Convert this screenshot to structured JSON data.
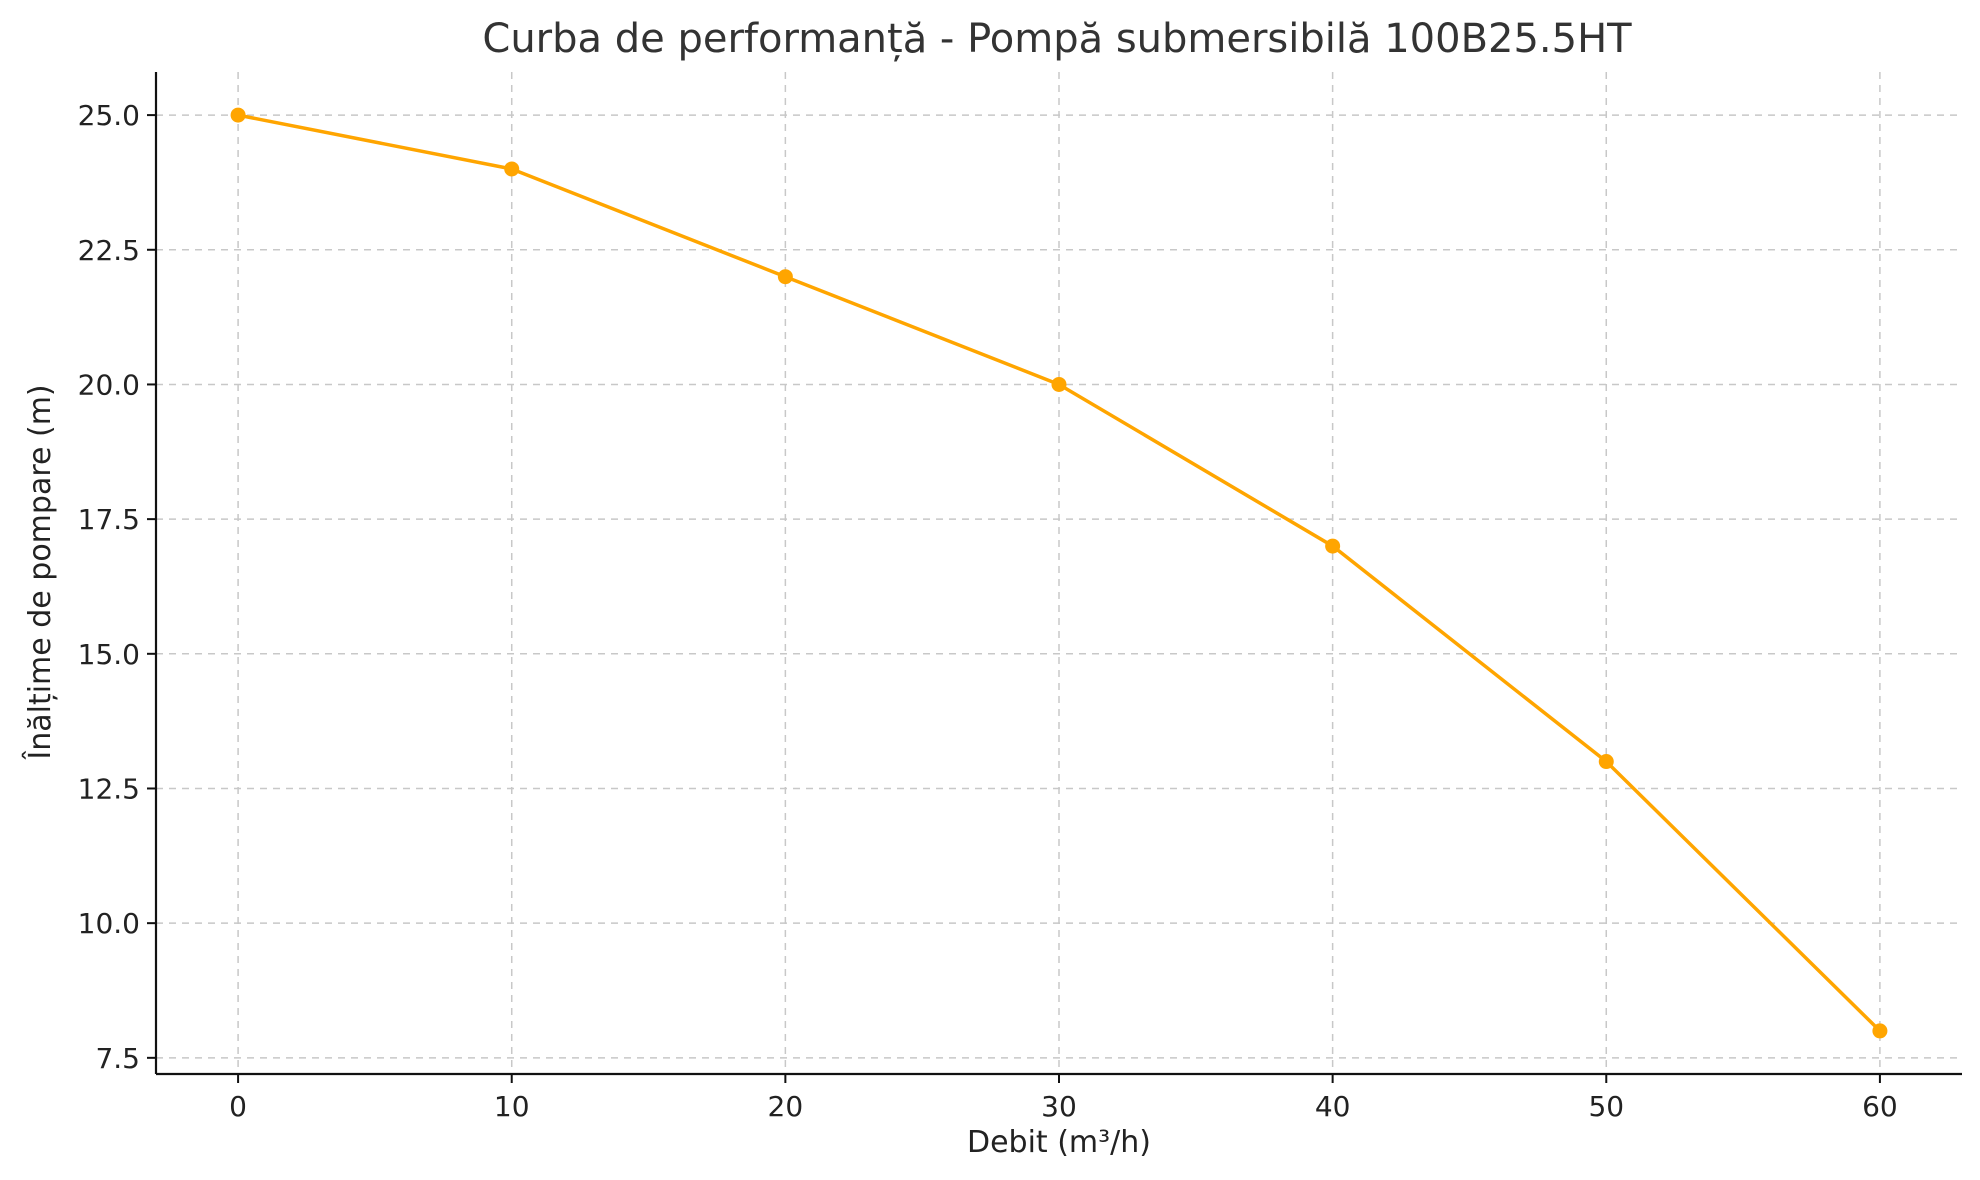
{
  "chart_data": {
    "type": "line",
    "title": "Curba de performanță - Pompă submersibilă 100B25.5HT",
    "xlabel": "Debit (m³/h)",
    "ylabel": "Înălțime de pompare (m)",
    "x": [
      0,
      10,
      20,
      30,
      40,
      50,
      60
    ],
    "series": [
      {
        "values": [
          25,
          24,
          22,
          20,
          17,
          13,
          8
        ],
        "color": "#FFA500"
      }
    ],
    "xlim": [
      -3,
      63
    ],
    "ylim": [
      7.2,
      25.8
    ],
    "xticks": [
      0,
      10,
      20,
      30,
      40,
      50,
      60
    ],
    "xtick_labels": [
      "0",
      "10",
      "20",
      "30",
      "40",
      "50",
      "60"
    ],
    "yticks": [
      7.5,
      10.0,
      12.5,
      15.0,
      17.5,
      20.0,
      22.5,
      25.0
    ],
    "ytick_labels": [
      "7.5",
      "10.0",
      "12.5",
      "15.0",
      "17.5",
      "20.0",
      "22.5",
      "25.0"
    ],
    "grid": true,
    "marker": "circle"
  }
}
